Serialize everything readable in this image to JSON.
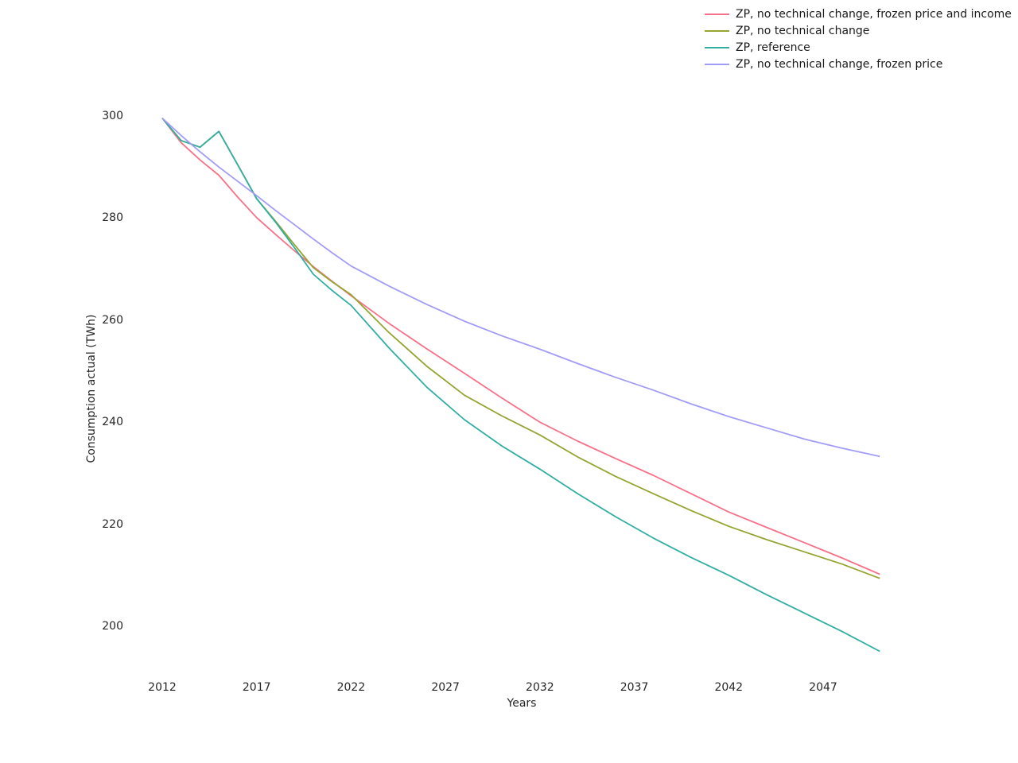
{
  "text_color": "#262626",
  "background_color": "#ffffff",
  "chart_data": {
    "type": "line",
    "title": "",
    "xlabel": "Years",
    "ylabel": "Consumption actual (TWh)",
    "grid": false,
    "legend_position": "top-right",
    "x_ticks": [
      "2012",
      "2017",
      "2022",
      "2027",
      "2032",
      "2037",
      "2042",
      "2047"
    ],
    "y_ticks": [
      "200",
      "220",
      "240",
      "260",
      "280",
      "300"
    ],
    "xlim": [
      2012,
      2050
    ],
    "ylim": [
      193,
      302
    ],
    "x": [
      2012,
      2013,
      2014,
      2015,
      2016,
      2017,
      2018,
      2019,
      2020,
      2021,
      2022,
      2024,
      2026,
      2028,
      2030,
      2032,
      2034,
      2036,
      2038,
      2040,
      2042,
      2044,
      2046,
      2048,
      2050
    ],
    "series": [
      {
        "name": "ZP, no technical change, frozen price and income",
        "color": "#f77189",
        "values": [
          299.6,
          294.8,
          291.4,
          288.4,
          284.1,
          280.1,
          276.8,
          273.6,
          270.5,
          267.6,
          264.8,
          259.4,
          254.4,
          249.6,
          244.7,
          240.0,
          236.3,
          232.9,
          229.6,
          226.0,
          222.4,
          219.4,
          216.4,
          213.4,
          210.2
        ]
      },
      {
        "name": "ZP, no technical change",
        "color": "#96a431",
        "values": [
          299.6,
          295.2,
          293.9,
          297.0,
          290.4,
          283.8,
          279.4,
          274.8,
          270.3,
          267.5,
          265.0,
          257.6,
          251.0,
          245.3,
          241.2,
          237.5,
          233.2,
          229.4,
          226.0,
          222.7,
          219.6,
          217.0,
          214.6,
          212.2,
          209.4
        ]
      },
      {
        "name": "ZP, reference",
        "color": "#31aea3",
        "values": [
          299.6,
          295.2,
          293.9,
          297.0,
          290.4,
          283.8,
          279.2,
          274.2,
          269.0,
          265.8,
          262.9,
          254.6,
          246.9,
          240.5,
          235.3,
          230.8,
          226.0,
          221.5,
          217.3,
          213.5,
          210.0,
          206.2,
          202.6,
          199.0,
          195.1
        ]
      },
      {
        "name": "ZP, no technical change, frozen price",
        "color": "#a29cf6",
        "values": [
          299.6,
          296.2,
          293.0,
          290.0,
          287.2,
          284.4,
          281.5,
          278.7,
          275.9,
          273.2,
          270.6,
          266.7,
          263.1,
          259.8,
          256.9,
          254.3,
          251.5,
          248.8,
          246.3,
          243.6,
          241.1,
          238.9,
          236.7,
          234.9,
          233.3
        ]
      }
    ]
  }
}
